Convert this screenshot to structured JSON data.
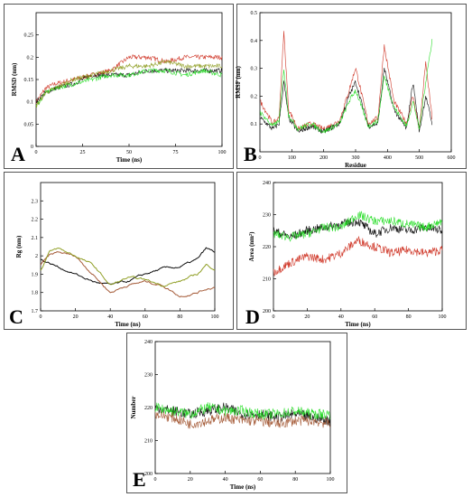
{
  "colors": {
    "red": "#cc2a1a",
    "black": "#000000",
    "green": "#1fdc1f",
    "olive": "#8a9a1a",
    "brown": "#a0522d",
    "teal": "#1fb5a0"
  },
  "chart_data": [
    {
      "panel": "A",
      "type": "line",
      "xlabel": "Time (ns)",
      "ylabel": "RMSD (nm)",
      "xlim": [
        0,
        100
      ],
      "ylim": [
        0,
        0.3
      ],
      "xticks": [
        0,
        25,
        50,
        75,
        100
      ],
      "yticks": [
        0,
        0.05,
        0.1,
        0.15,
        0.2,
        0.25
      ],
      "series": [
        {
          "color": "red",
          "x": [
            0,
            5,
            10,
            20,
            30,
            40,
            50,
            60,
            70,
            80,
            90,
            100
          ],
          "y": [
            0.1,
            0.13,
            0.14,
            0.15,
            0.16,
            0.17,
            0.2,
            0.2,
            0.19,
            0.2,
            0.2,
            0.2
          ]
        },
        {
          "color": "black",
          "x": [
            0,
            5,
            10,
            20,
            30,
            40,
            50,
            60,
            70,
            80,
            90,
            100
          ],
          "y": [
            0.1,
            0.12,
            0.13,
            0.14,
            0.16,
            0.16,
            0.16,
            0.17,
            0.17,
            0.17,
            0.17,
            0.17
          ]
        },
        {
          "color": "green",
          "x": [
            0,
            5,
            10,
            20,
            30,
            40,
            50,
            60,
            70,
            80,
            90,
            100
          ],
          "y": [
            0.09,
            0.12,
            0.13,
            0.14,
            0.15,
            0.16,
            0.16,
            0.17,
            0.17,
            0.16,
            0.17,
            0.16
          ]
        },
        {
          "color": "olive",
          "x": [
            0,
            5,
            10,
            20,
            30,
            40,
            50,
            60,
            70,
            80,
            90,
            100
          ],
          "y": [
            0.09,
            0.12,
            0.13,
            0.15,
            0.16,
            0.17,
            0.18,
            0.18,
            0.19,
            0.18,
            0.18,
            0.18
          ]
        }
      ]
    },
    {
      "panel": "B",
      "type": "line",
      "xlabel": "Residue",
      "ylabel": "RMSF (nm)",
      "xlim": [
        0,
        600
      ],
      "ylim": [
        0,
        0.5
      ],
      "xticks": [
        0,
        100,
        200,
        300,
        400,
        500,
        600
      ],
      "yticks": [
        0.1,
        0.2,
        0.3,
        0.4,
        0.5
      ],
      "series": [
        {
          "color": "red",
          "x": [
            1,
            40,
            60,
            75,
            90,
            120,
            160,
            200,
            250,
            280,
            300,
            340,
            370,
            390,
            420,
            460,
            480,
            500,
            520,
            540
          ],
          "y": [
            0.18,
            0.1,
            0.12,
            0.43,
            0.15,
            0.08,
            0.1,
            0.08,
            0.11,
            0.22,
            0.3,
            0.1,
            0.12,
            0.38,
            0.18,
            0.1,
            0.2,
            0.08,
            0.32,
            0.12
          ]
        },
        {
          "color": "black",
          "x": [
            1,
            40,
            60,
            75,
            90,
            120,
            160,
            200,
            250,
            280,
            300,
            340,
            370,
            390,
            420,
            460,
            480,
            500,
            520,
            540
          ],
          "y": [
            0.12,
            0.08,
            0.1,
            0.25,
            0.12,
            0.07,
            0.09,
            0.07,
            0.1,
            0.2,
            0.25,
            0.09,
            0.1,
            0.3,
            0.15,
            0.08,
            0.25,
            0.07,
            0.2,
            0.1
          ]
        },
        {
          "color": "green",
          "x": [
            1,
            40,
            60,
            75,
            90,
            120,
            160,
            200,
            250,
            280,
            300,
            340,
            370,
            390,
            420,
            460,
            480,
            500,
            520,
            540
          ],
          "y": [
            0.14,
            0.09,
            0.11,
            0.3,
            0.13,
            0.08,
            0.1,
            0.07,
            0.1,
            0.18,
            0.22,
            0.09,
            0.11,
            0.27,
            0.16,
            0.09,
            0.18,
            0.08,
            0.25,
            0.4
          ]
        }
      ]
    },
    {
      "panel": "C",
      "type": "line",
      "xlabel": "Time (ns)",
      "ylabel": "Rg (nm)",
      "xlim": [
        0,
        100
      ],
      "ylim": [
        1.7,
        2.4
      ],
      "xticks": [
        0,
        20,
        40,
        60,
        80,
        100
      ],
      "yticks": [
        1.7,
        1.8,
        1.9,
        2.0,
        2.1,
        2.2,
        2.3
      ],
      "series": [
        {
          "color": "black",
          "x": [
            0,
            5,
            10,
            20,
            30,
            40,
            50,
            60,
            70,
            80,
            90,
            95,
            100
          ],
          "y": [
            1.98,
            1.96,
            1.94,
            1.9,
            1.86,
            1.84,
            1.86,
            1.9,
            1.93,
            1.94,
            1.98,
            2.04,
            2.02
          ]
        },
        {
          "color": "brown",
          "x": [
            0,
            5,
            10,
            20,
            30,
            40,
            50,
            60,
            70,
            80,
            90,
            95,
            100
          ],
          "y": [
            1.95,
            2.0,
            2.02,
            2.0,
            1.9,
            1.8,
            1.84,
            1.86,
            1.84,
            1.78,
            1.8,
            1.82,
            1.83
          ]
        },
        {
          "color": "olive",
          "x": [
            0,
            5,
            10,
            20,
            30,
            40,
            50,
            60,
            70,
            80,
            90,
            95,
            100
          ],
          "y": [
            1.92,
            2.02,
            2.04,
            2.0,
            1.95,
            1.84,
            1.88,
            1.87,
            1.84,
            1.86,
            1.9,
            1.95,
            1.93
          ]
        }
      ]
    },
    {
      "panel": "D",
      "type": "line",
      "xlabel": "Time (ns)",
      "ylabel": "Area (nm²)",
      "xlim": [
        0,
        100
      ],
      "ylim": [
        200,
        240
      ],
      "xticks": [
        0,
        20,
        40,
        60,
        80,
        100
      ],
      "yticks": [
        200,
        210,
        220,
        230,
        240
      ],
      "series": [
        {
          "color": "black",
          "x": [
            0,
            10,
            20,
            30,
            40,
            50,
            60,
            70,
            80,
            90,
            100
          ],
          "y": [
            225,
            223,
            225,
            226,
            227,
            228,
            224,
            226,
            225,
            226,
            225
          ]
        },
        {
          "color": "red",
          "x": [
            0,
            10,
            20,
            30,
            40,
            50,
            60,
            70,
            80,
            90,
            100
          ],
          "y": [
            212,
            215,
            217,
            216,
            218,
            222,
            220,
            218,
            219,
            218,
            219
          ]
        },
        {
          "color": "green",
          "x": [
            0,
            10,
            20,
            30,
            40,
            50,
            60,
            70,
            80,
            90,
            100
          ],
          "y": [
            224,
            223,
            224,
            226,
            226,
            230,
            228,
            228,
            227,
            226,
            228
          ]
        }
      ]
    },
    {
      "panel": "E",
      "type": "line",
      "xlabel": "Time (ns)",
      "ylabel": "Number",
      "xlim": [
        0,
        100
      ],
      "ylim": [
        200,
        240
      ],
      "xticks": [
        0,
        20,
        40,
        60,
        80,
        100
      ],
      "yticks": [
        200,
        210,
        220,
        230,
        240
      ],
      "series": [
        {
          "color": "black",
          "x": [
            0,
            10,
            20,
            30,
            40,
            50,
            60,
            70,
            80,
            90,
            100
          ],
          "y": [
            220,
            219,
            218,
            219,
            220,
            218,
            218,
            217,
            218,
            217,
            216
          ]
        },
        {
          "color": "brown",
          "x": [
            0,
            10,
            20,
            30,
            40,
            50,
            60,
            70,
            80,
            90,
            100
          ],
          "y": [
            218,
            217,
            215,
            216,
            217,
            216,
            216,
            215,
            216,
            216,
            215
          ]
        },
        {
          "color": "green",
          "x": [
            0,
            10,
            20,
            30,
            40,
            50,
            60,
            70,
            80,
            90,
            100
          ],
          "y": [
            220,
            219,
            218,
            220,
            219,
            219,
            218,
            218,
            219,
            218,
            218
          ]
        }
      ]
    }
  ],
  "panels": {
    "A": {
      "letter": "A"
    },
    "B": {
      "letter": "B"
    },
    "C": {
      "letter": "C"
    },
    "D": {
      "letter": "D"
    },
    "E": {
      "letter": "E"
    }
  }
}
